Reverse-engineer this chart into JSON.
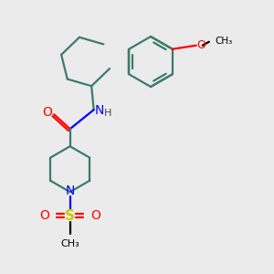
{
  "bg_color": "#ebebeb",
  "bond_color": "#3d7a6e",
  "N_color": "#0000ff",
  "O_color": "#ff0000",
  "S_color": "#cccc00",
  "line_width": 1.6,
  "fig_width": 3.0,
  "fig_height": 3.0,
  "xlim": [
    0,
    6
  ],
  "ylim": [
    0,
    6
  ]
}
